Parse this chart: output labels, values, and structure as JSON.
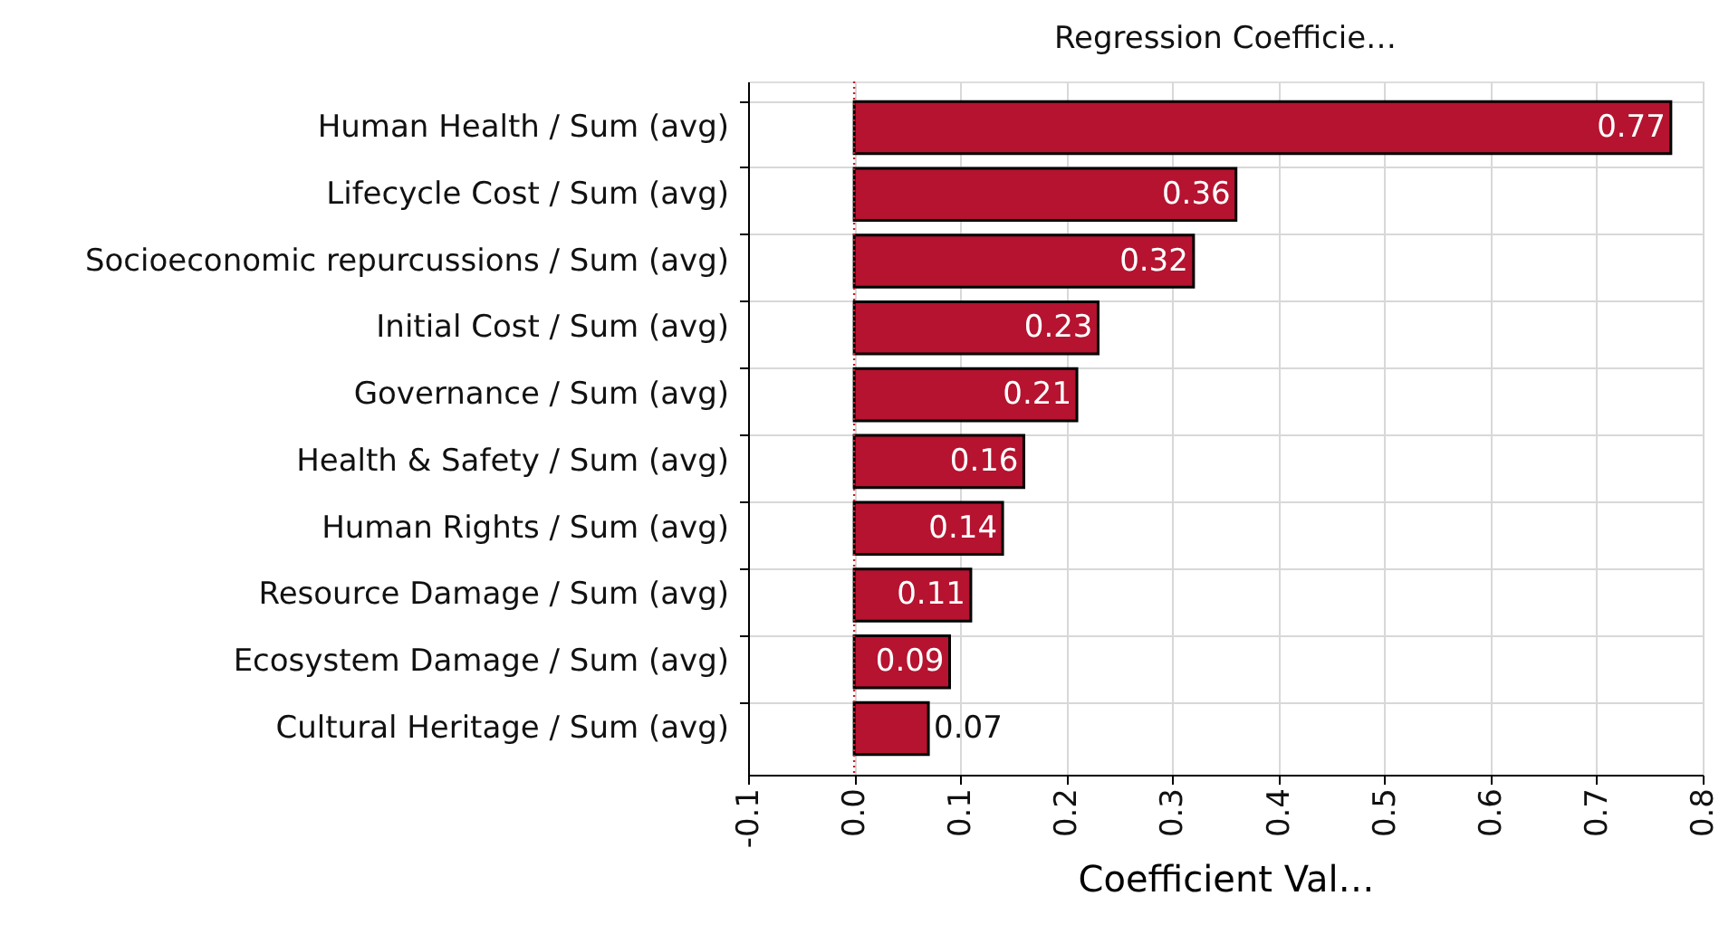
{
  "chart_data": {
    "type": "bar",
    "orientation": "horizontal",
    "title": "Regression Coefficie…",
    "xlabel": "Coefficient Val…",
    "categories": [
      "Human Health / Sum (avg)",
      "Lifecycle Cost / Sum (avg)",
      "Socioeconomic repurcussions / Sum (avg)",
      "Initial Cost / Sum (avg)",
      "Governance / Sum (avg)",
      "Health & Safety / Sum (avg)",
      "Human Rights / Sum (avg)",
      "Resource Damage / Sum (avg)",
      "Ecosystem Damage / Sum (avg)",
      "Cultural Heritage / Sum (avg)"
    ],
    "values": [
      0.77,
      0.36,
      0.32,
      0.23,
      0.21,
      0.16,
      0.14,
      0.11,
      0.09,
      0.07
    ],
    "color": "#b5132f",
    "data_labels": true,
    "xlim": [
      -0.1,
      0.8
    ],
    "xticks": [
      -0.1,
      {
        "value": 0,
        "label": "0.0"
      },
      0.1,
      0.2,
      0.3,
      0.4,
      0.5,
      0.6,
      0.7,
      0.8
    ],
    "ref_lines": [
      {
        "axis": "x",
        "value": 0,
        "color": "#c0202a",
        "line_style": "dotted"
      }
    ],
    "grid": true
  }
}
